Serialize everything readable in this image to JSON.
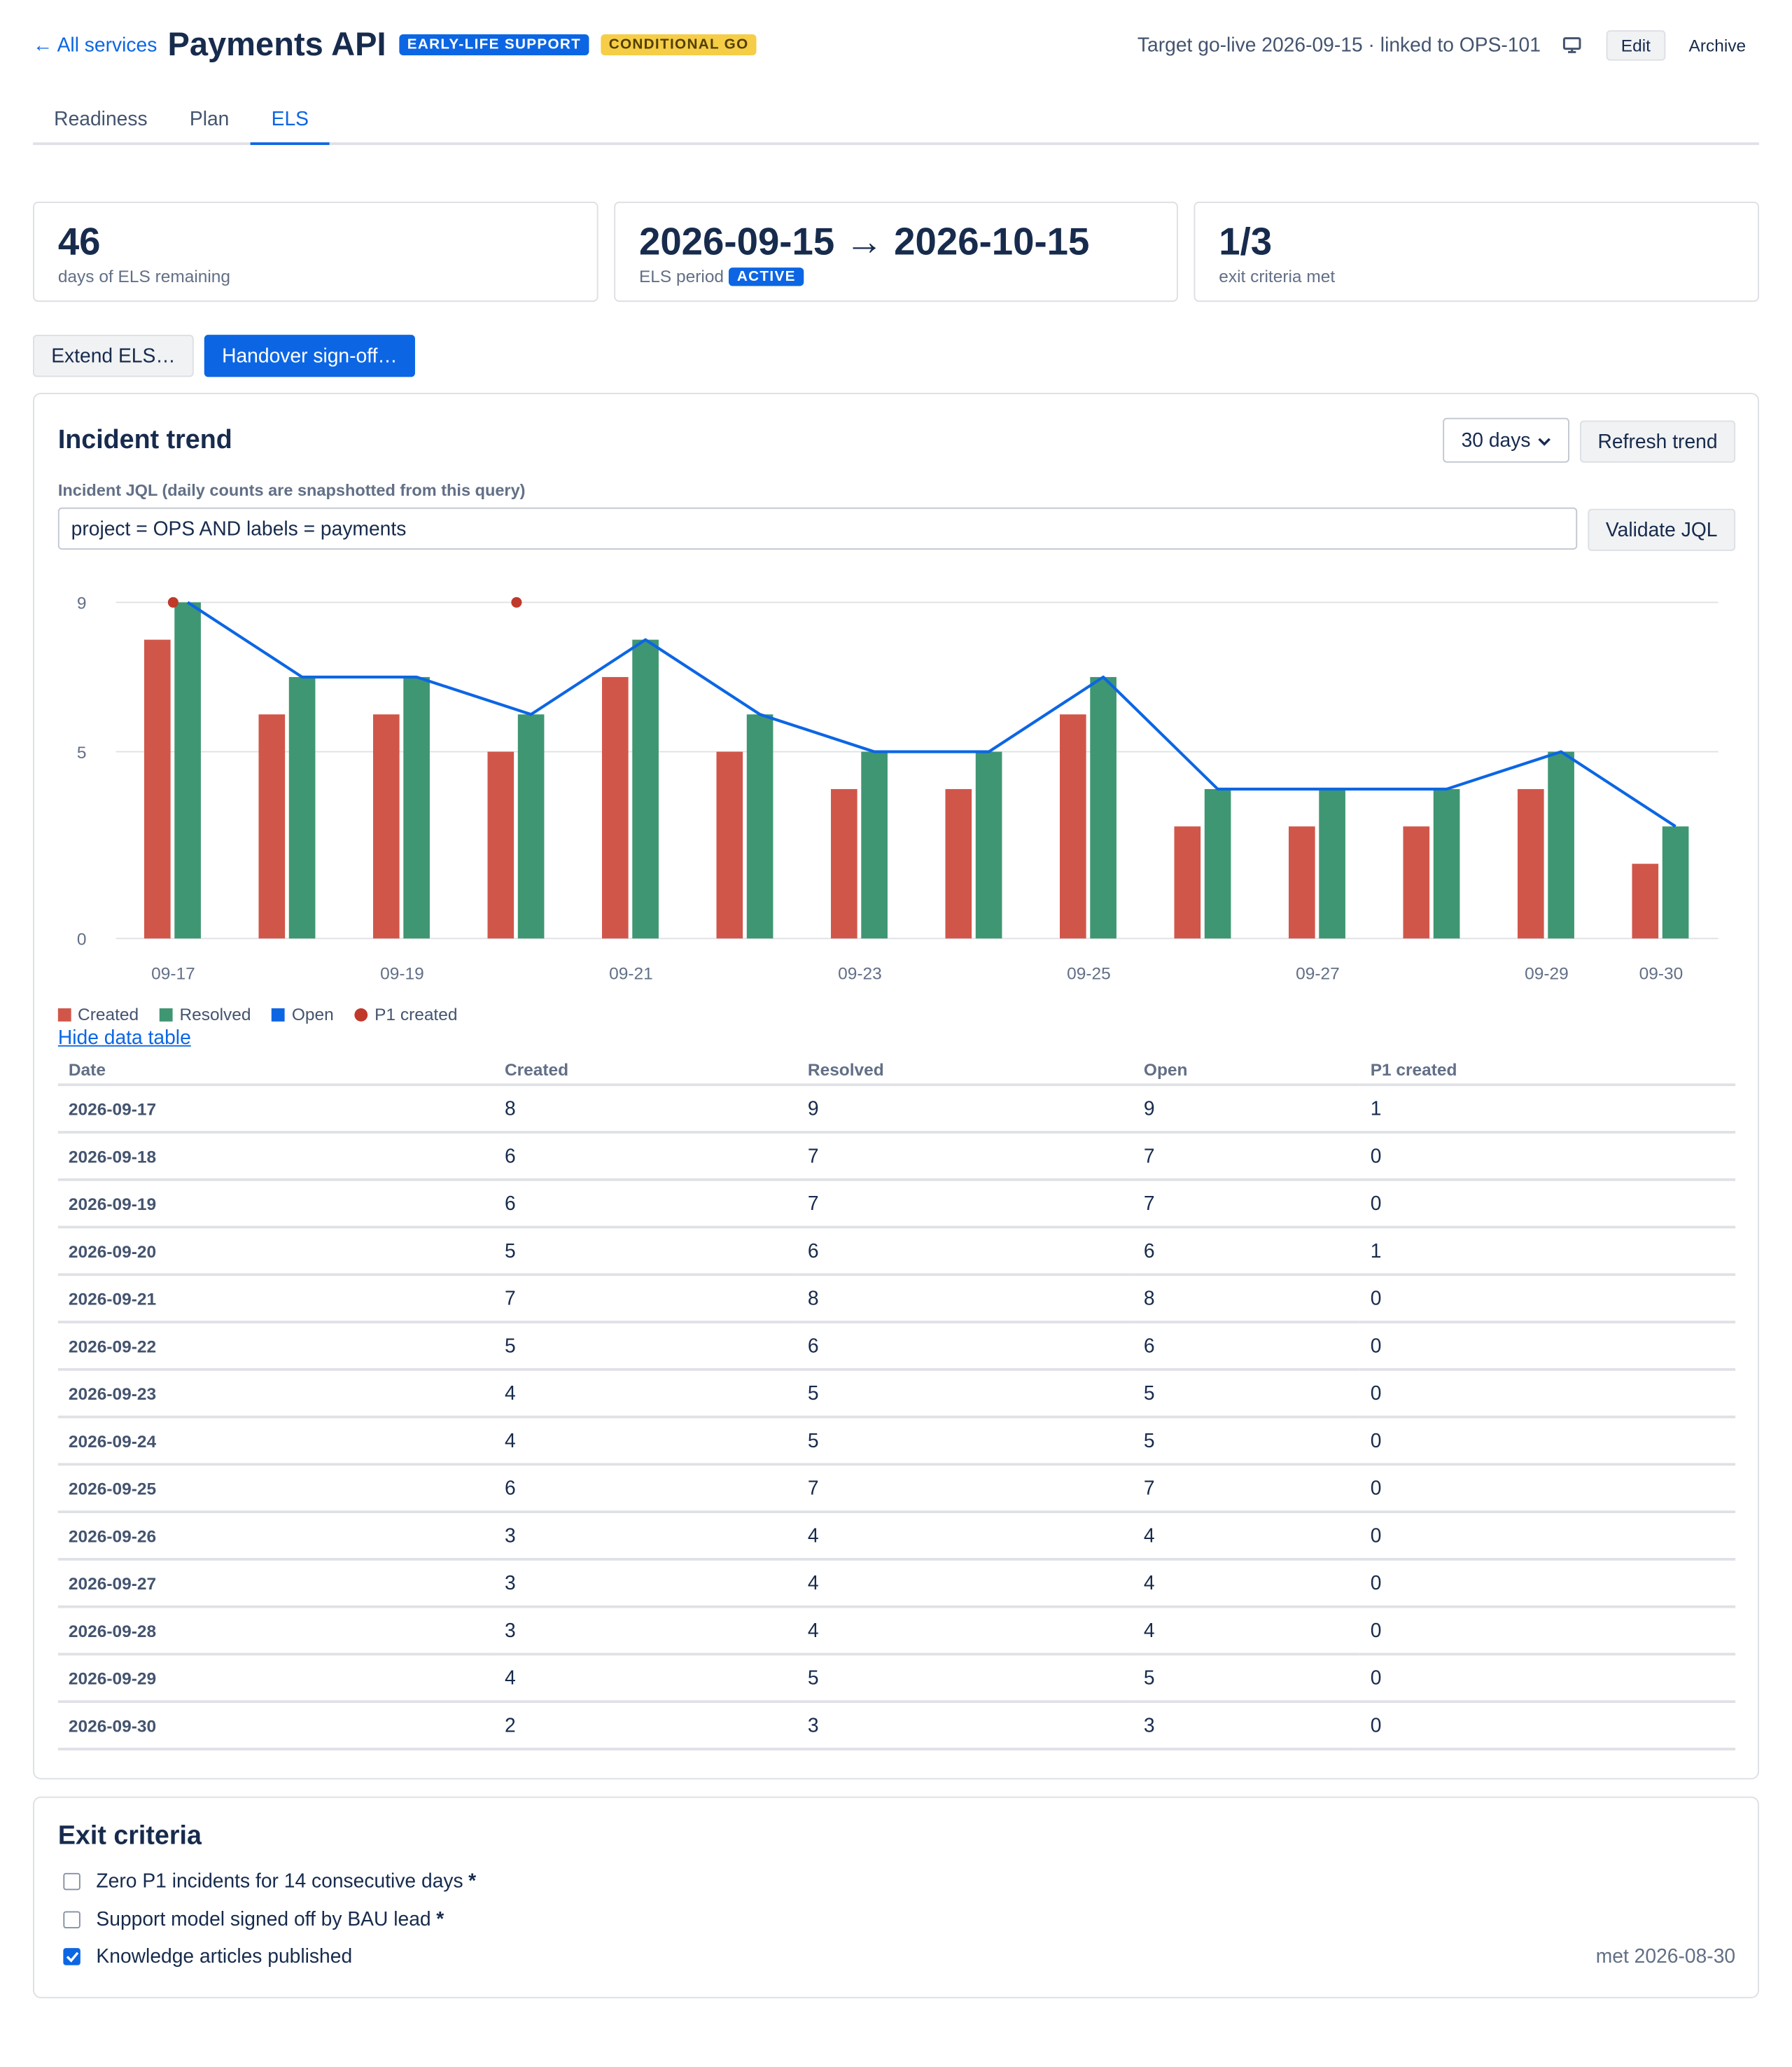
{
  "header": {
    "back_label": "← All services",
    "title": "Payments API",
    "badge_stage": "EARLY-LIFE SUPPORT",
    "badge_decision": "CONDITIONAL GO",
    "meta": "Target go-live 2026-09-15 · linked to OPS-101",
    "edit_label": "Edit",
    "archive_label": "Archive"
  },
  "tabs": [
    {
      "label": "Readiness",
      "active": false
    },
    {
      "label": "Plan",
      "active": false
    },
    {
      "label": "ELS",
      "active": true
    }
  ],
  "stats": [
    {
      "value": "46",
      "label": "days of ELS remaining"
    },
    {
      "value": "2026-09-15 → 2026-10-15",
      "label": "ELS period",
      "badge": "ACTIVE"
    },
    {
      "value": "1/3",
      "label": "exit criteria met"
    }
  ],
  "actions": {
    "extend_label": "Extend ELS…",
    "handover_label": "Handover sign-off…"
  },
  "trend": {
    "title": "Incident trend",
    "range_value": "30 days",
    "refresh_label": "Refresh trend",
    "jql_label": "Incident JQL (daily counts are snapshotted from this query)",
    "jql_value": "project = OPS AND labels = payments",
    "validate_label": "Validate JQL",
    "toggle_table_label": "Hide data table"
  },
  "chart_data": {
    "type": "bar",
    "categories": [
      "09-17",
      "09-18",
      "09-19",
      "09-20",
      "09-21",
      "09-22",
      "09-23",
      "09-24",
      "09-25",
      "09-26",
      "09-27",
      "09-28",
      "09-29",
      "09-30"
    ],
    "x_tick_labels": [
      "09-17",
      "",
      "09-19",
      "",
      "09-21",
      "",
      "09-23",
      "",
      "09-25",
      "",
      "09-27",
      "",
      "09-29",
      "09-30"
    ],
    "y_ticks": [
      "0",
      "5",
      "9"
    ],
    "ylim": [
      0,
      9
    ],
    "grid": true,
    "legend": "bottom-left",
    "series": [
      {
        "name": "Created",
        "type": "bar",
        "color": "#d1564a",
        "values": [
          8,
          6,
          6,
          5,
          7,
          5,
          4,
          4,
          6,
          3,
          3,
          3,
          4,
          2
        ]
      },
      {
        "name": "Resolved",
        "type": "bar",
        "color": "#3f9672",
        "values": [
          9,
          7,
          7,
          6,
          8,
          6,
          5,
          5,
          7,
          4,
          4,
          4,
          5,
          3
        ]
      },
      {
        "name": "Open",
        "type": "line",
        "color": "#0c66e4",
        "values": [
          9,
          7,
          7,
          6,
          8,
          6,
          5,
          5,
          7,
          4,
          4,
          4,
          5,
          3
        ]
      },
      {
        "name": "P1 created",
        "type": "scatter",
        "color": "#c0392b",
        "values": [
          1,
          0,
          0,
          1,
          0,
          0,
          0,
          0,
          0,
          0,
          0,
          0,
          0,
          0
        ]
      }
    ]
  },
  "table": {
    "headers": [
      "Date",
      "Created",
      "Resolved",
      "Open",
      "P1 created"
    ],
    "rows": [
      [
        "2026-09-17",
        "8",
        "9",
        "9",
        "1"
      ],
      [
        "2026-09-18",
        "6",
        "7",
        "7",
        "0"
      ],
      [
        "2026-09-19",
        "6",
        "7",
        "7",
        "0"
      ],
      [
        "2026-09-20",
        "5",
        "6",
        "6",
        "1"
      ],
      [
        "2026-09-21",
        "7",
        "8",
        "8",
        "0"
      ],
      [
        "2026-09-22",
        "5",
        "6",
        "6",
        "0"
      ],
      [
        "2026-09-23",
        "4",
        "5",
        "5",
        "0"
      ],
      [
        "2026-09-24",
        "4",
        "5",
        "5",
        "0"
      ],
      [
        "2026-09-25",
        "6",
        "7",
        "7",
        "0"
      ],
      [
        "2026-09-26",
        "3",
        "4",
        "4",
        "0"
      ],
      [
        "2026-09-27",
        "3",
        "4",
        "4",
        "0"
      ],
      [
        "2026-09-28",
        "3",
        "4",
        "4",
        "0"
      ],
      [
        "2026-09-29",
        "4",
        "5",
        "5",
        "0"
      ],
      [
        "2026-09-30",
        "2",
        "3",
        "3",
        "0"
      ]
    ]
  },
  "exit_criteria": {
    "title": "Exit criteria",
    "items": [
      {
        "label": "Zero P1 incidents for 14 consecutive days",
        "required": "*",
        "checked": false,
        "met": ""
      },
      {
        "label": "Support model signed off by BAU lead",
        "required": "*",
        "checked": false,
        "met": ""
      },
      {
        "label": "Knowledge articles published",
        "required": "",
        "checked": true,
        "met": "met 2026-08-30"
      }
    ]
  }
}
